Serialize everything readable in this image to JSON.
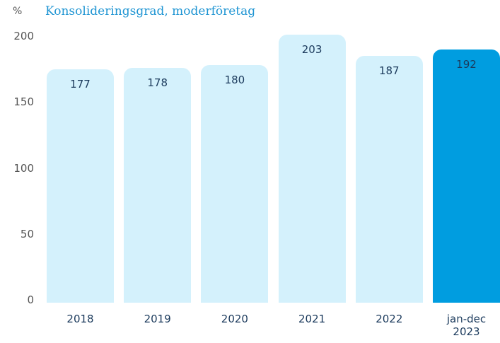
{
  "chart_data": {
    "type": "bar",
    "unit_label": "%",
    "title": "Konsolideringsgrad, moderföretag",
    "categories": [
      "2018",
      "2019",
      "2020",
      "2021",
      "2022",
      "jan-dec 2023"
    ],
    "values": [
      177,
      178,
      180,
      203,
      187,
      192
    ],
    "colors": [
      "#d4f1fc",
      "#d4f1fc",
      "#d4f1fc",
      "#d4f1fc",
      "#d4f1fc",
      "#009de0"
    ],
    "ylim": [
      0,
      200
    ],
    "yticks": [
      0,
      50,
      100,
      150,
      200
    ],
    "grid": false
  }
}
